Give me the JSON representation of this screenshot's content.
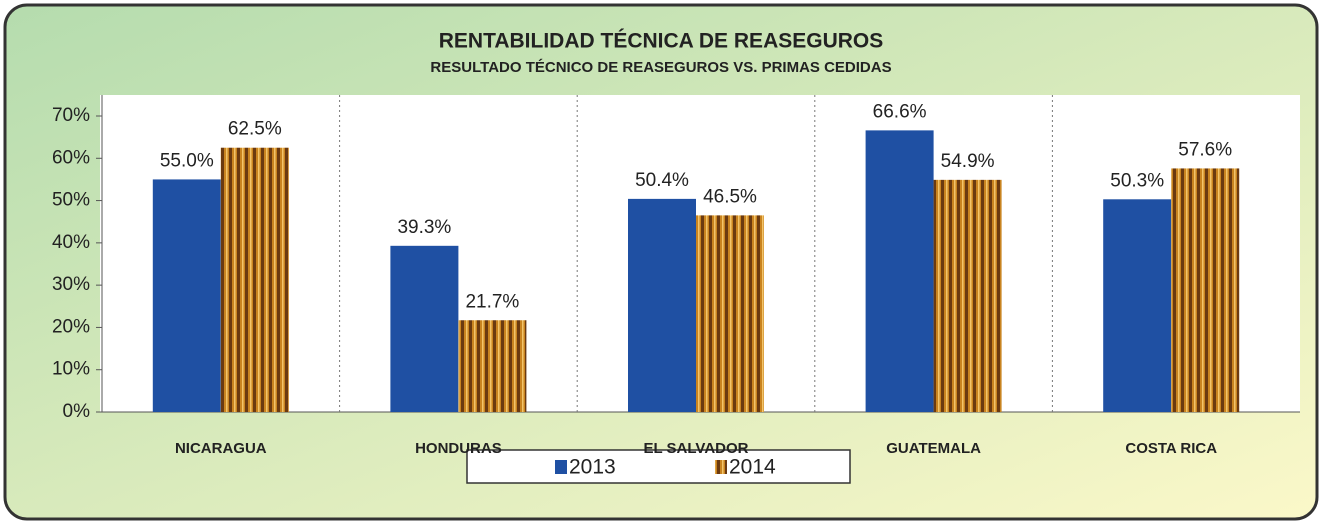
{
  "chart_data": {
    "type": "bar",
    "title": "RENTABILIDAD TÉCNICA DE REASEGUROS",
    "subtitle": "RESULTADO TÉCNICO DE REASEGUROS  VS. PRIMAS CEDIDAS",
    "categories": [
      "NICARAGUA",
      "HONDURAS",
      "EL SALVADOR",
      "GUATEMALA",
      "COSTA RICA"
    ],
    "series": [
      {
        "name": "2013",
        "color": "#1f50a3",
        "values": [
          55.0,
          39.3,
          50.4,
          66.6,
          50.3
        ],
        "value_labels": [
          "55.0%",
          "39.3%",
          "50.4%",
          "66.6%",
          "50.3%"
        ]
      },
      {
        "name": "2014",
        "color": "#c98420",
        "values": [
          62.5,
          21.7,
          46.5,
          54.9,
          57.6
        ],
        "value_labels": [
          "62.5%",
          "21.7%",
          "46.5%",
          "54.9%",
          "57.6%"
        ]
      }
    ],
    "ylim": [
      0,
      70
    ],
    "yticks": [
      {
        "value": 0,
        "label": "0%"
      },
      {
        "value": 10,
        "label": "10%"
      },
      {
        "value": 20,
        "label": "20%"
      },
      {
        "value": 30,
        "label": "30%"
      },
      {
        "value": 40,
        "label": "40%"
      },
      {
        "value": 50,
        "label": "50%"
      },
      {
        "value": 60,
        "label": "60%"
      },
      {
        "value": 70,
        "label": "70%"
      }
    ],
    "grid": false
  }
}
